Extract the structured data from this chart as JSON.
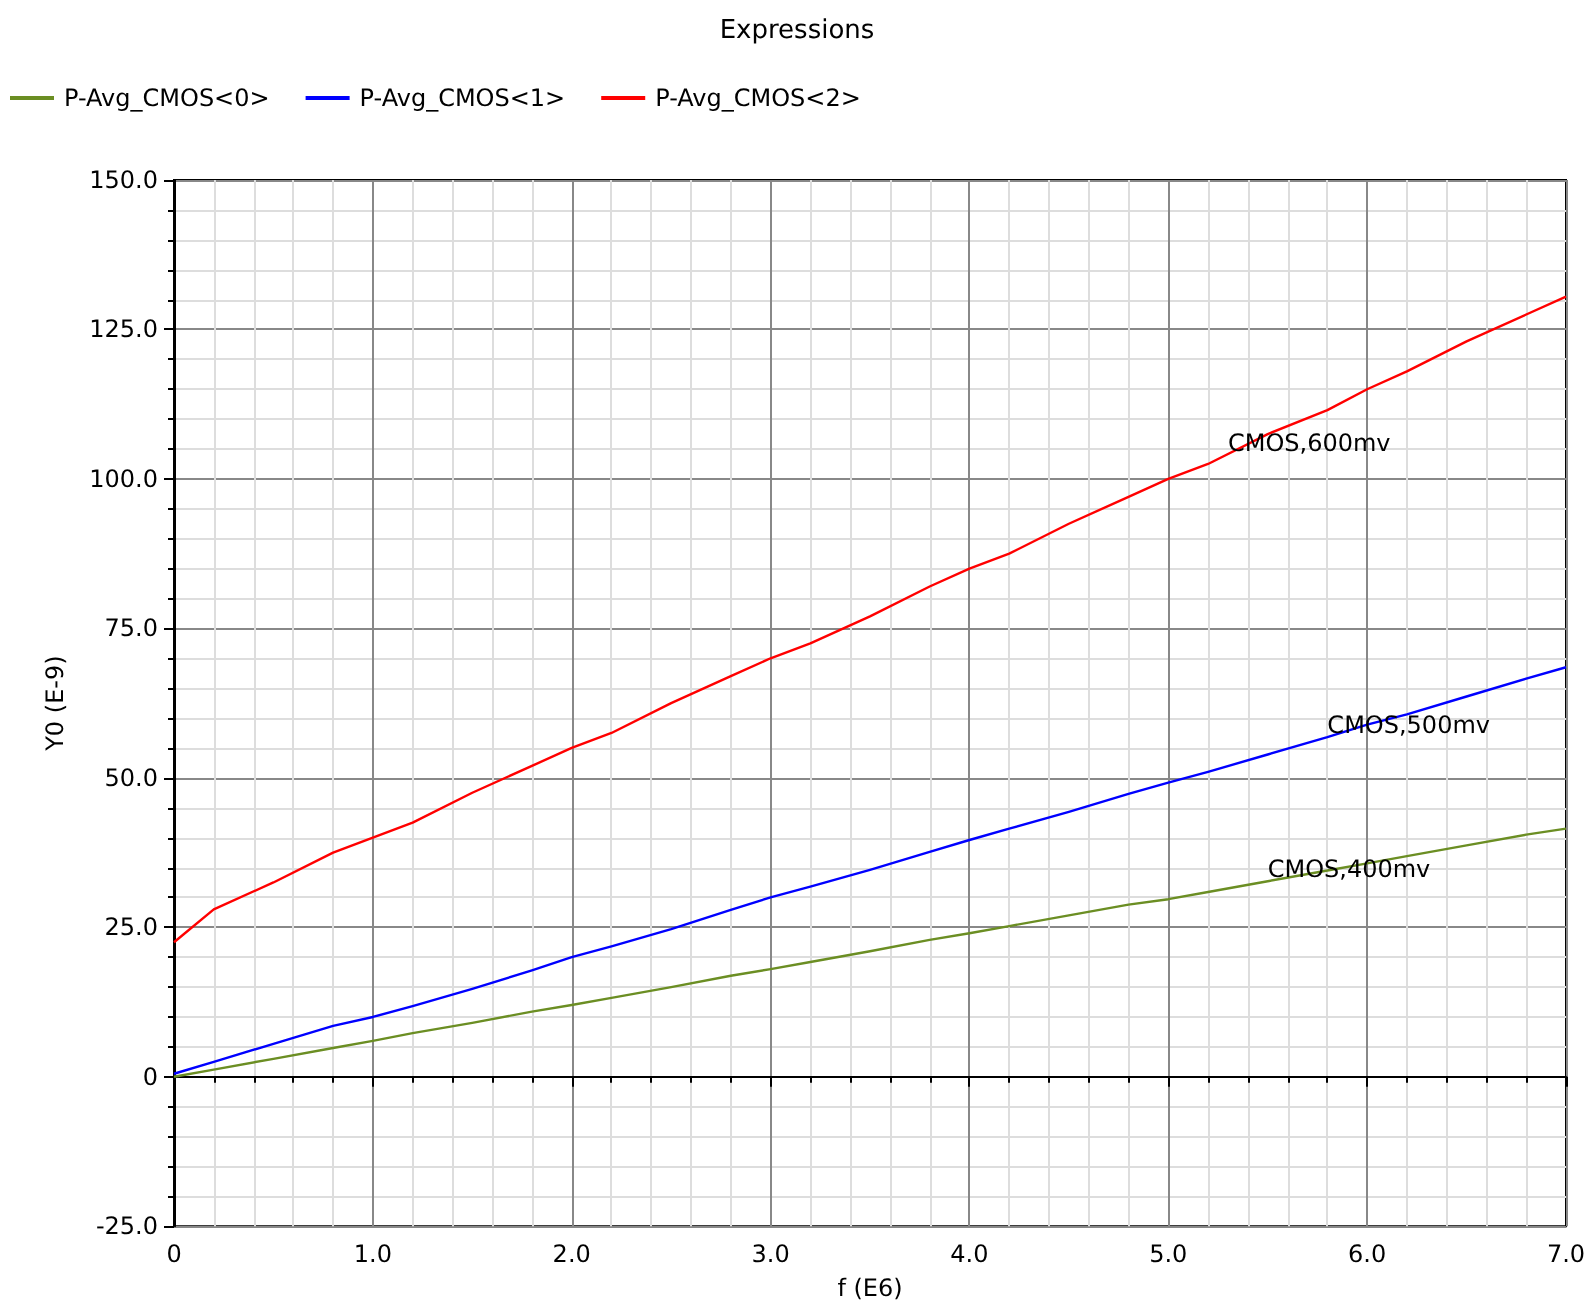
{
  "chart_data": {
    "type": "line",
    "title": "Expressions",
    "xlabel": "f (E6)",
    "ylabel": "Y0 (E-9)",
    "x": [
      0,
      0.2,
      0.5,
      0.8,
      1.0,
      1.2,
      1.5,
      1.8,
      2.0,
      2.2,
      2.5,
      2.8,
      3.0,
      3.2,
      3.5,
      3.8,
      4.0,
      4.2,
      4.5,
      4.8,
      5.0,
      5.2,
      5.5,
      5.8,
      6.0,
      6.2,
      6.5,
      6.8,
      7.0
    ],
    "series": [
      {
        "name": "P-Avg_CMOS<0>",
        "color": "#6b8e23",
        "values": [
          0,
          1.2,
          3,
          4.8,
          6,
          7.3,
          9,
          10.9,
          12,
          13.2,
          15,
          16.9,
          18,
          19.2,
          21,
          22.9,
          24,
          25.2,
          27,
          28.8,
          29.7,
          30.9,
          32.7,
          34.5,
          35.7,
          36.9,
          38.7,
          40.5,
          41.5
        ]
      },
      {
        "name": "P-Avg_CMOS<1>",
        "color": "#0000ff",
        "values": [
          0.5,
          2.5,
          5.5,
          8.5,
          10,
          11.8,
          14.7,
          17.8,
          20,
          21.8,
          24.7,
          27.9,
          30,
          31.8,
          34.6,
          37.6,
          39.6,
          41.5,
          44.3,
          47.3,
          49.2,
          51,
          53.9,
          56.8,
          58.9,
          60.6,
          63.6,
          66.6,
          68.5
        ]
      },
      {
        "name": "P-Avg_CMOS<2>",
        "color": "#ff0000",
        "values": [
          22.5,
          28,
          32.5,
          37.5,
          40,
          42.5,
          47.5,
          52,
          55,
          57.5,
          62.5,
          67,
          70,
          72.5,
          77,
          82,
          85,
          87.5,
          92.5,
          97,
          100,
          102.5,
          107.5,
          111.5,
          115,
          118,
          123,
          127.5,
          130.5
        ]
      }
    ],
    "xlim": [
      0,
      7
    ],
    "ylim": [
      -25,
      150
    ],
    "xticks": [
      0,
      {
        "value": 1,
        "label": "1.0"
      },
      {
        "value": 2,
        "label": "2.0"
      },
      {
        "value": 3,
        "label": "3.0"
      },
      {
        "value": 4,
        "label": "4.0"
      },
      {
        "value": 5,
        "label": "5.0"
      },
      {
        "value": 6,
        "label": "6.0"
      },
      {
        "value": 7,
        "label": "7.0"
      }
    ],
    "yticks": [
      {
        "value": -25,
        "label": "-25.0"
      },
      0,
      {
        "value": 25,
        "label": "25.0"
      },
      {
        "value": 50,
        "label": "50.0"
      },
      {
        "value": 75,
        "label": "75.0"
      },
      {
        "value": 100,
        "label": "100.0"
      },
      {
        "value": 125,
        "label": "125.0"
      },
      {
        "value": 150,
        "label": "150.0"
      }
    ],
    "annotations": [
      {
        "text": "CMOS,600mv",
        "x": 5.3,
        "y": 104
      },
      {
        "text": "CMOS,500mv",
        "x": 5.8,
        "y": 56.8
      },
      {
        "text": "CMOS,400mv",
        "x": 5.5,
        "y": 32.7
      }
    ],
    "grid": true,
    "legend": "top left",
    "line_style": "solid",
    "marker": "none"
  }
}
